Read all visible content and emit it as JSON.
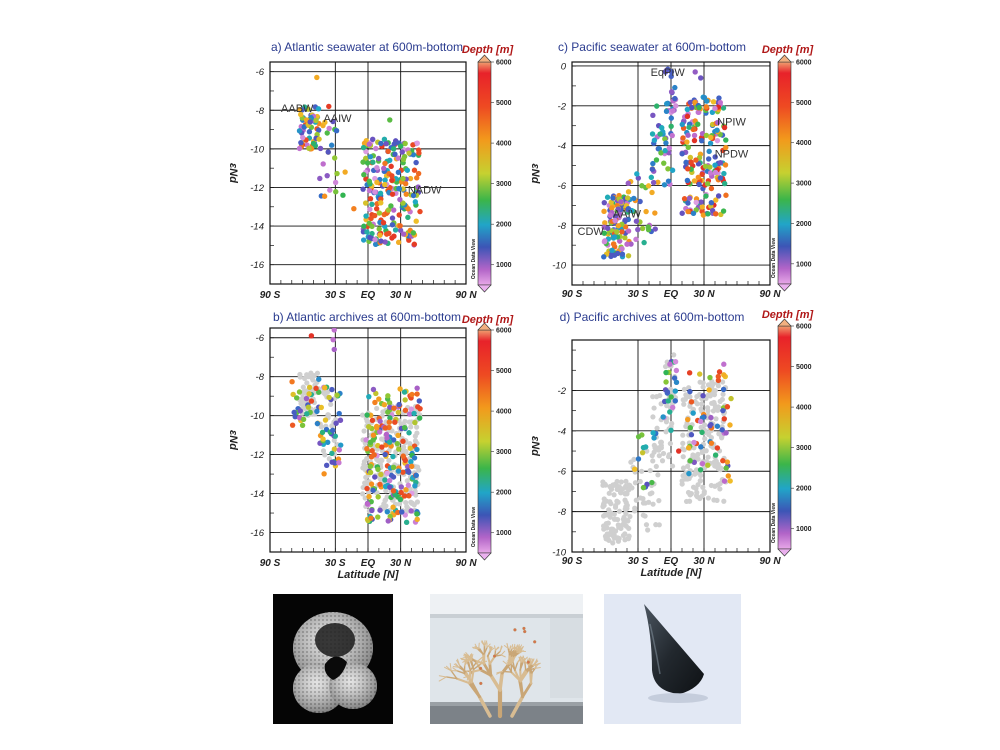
{
  "chart_data": [
    {
      "type": "scatter",
      "title": "a) Atlantic seawater at 600m-bottom",
      "ylabel": "εNd",
      "xlabel": "",
      "x_ticks": [
        "90 S",
        "30 S",
        "EQ",
        "30 N",
        "90 N"
      ],
      "xlim": [
        -90,
        90
      ],
      "ylim": [
        -17,
        -5.5
      ],
      "y_ticks": [
        -6,
        -8,
        -10,
        -12,
        -14,
        -16
      ],
      "grid": true,
      "colorbar": {
        "title": "Depth [m]",
        "ticks": [
          "6000",
          "5000",
          "4000",
          "3000",
          "2000",
          "1000"
        ],
        "range": [
          500,
          6000
        ],
        "credit": "Ocean Data View"
      },
      "annotations": [
        {
          "text": "AABW",
          "x": -65,
          "y": -8.1
        },
        {
          "text": "AAIW",
          "x": -28,
          "y": -8.6
        },
        {
          "text": "NADW",
          "x": 52,
          "y": -12.3
        }
      ],
      "clusters": [
        {
          "x": [
            -63,
            -45
          ],
          "y": [
            -10,
            -7.8
          ],
          "depth": [
            600,
            5200
          ],
          "n": 60
        },
        {
          "x": [
            -45,
            -28
          ],
          "y": [
            -12.5,
            -8.5
          ],
          "depth": [
            700,
            4500
          ],
          "n": 22
        },
        {
          "x": [
            -5,
            48
          ],
          "y": [
            -15,
            -9.5
          ],
          "depth": [
            500,
            5500
          ],
          "n": 230
        }
      ],
      "points": [
        {
          "x": -47,
          "y": -6.3,
          "depth": 4200
        },
        {
          "x": -36,
          "y": -7.8,
          "depth": 5400
        },
        {
          "x": -21,
          "y": -11.2,
          "depth": 4200
        },
        {
          "x": -13,
          "y": -13.1,
          "depth": 4600
        },
        {
          "x": -23,
          "y": -12.4,
          "depth": 3000
        },
        {
          "x": 20,
          "y": -8.5,
          "depth": 3200
        }
      ]
    },
    {
      "type": "scatter",
      "title": "c) Pacific seawater at 600m-bottom",
      "ylabel": "εNd",
      "xlabel": "",
      "x_ticks": [
        "90 S",
        "30 S",
        "EQ",
        "30 N",
        "90 N"
      ],
      "xlim": [
        -90,
        90
      ],
      "ylim": [
        -11,
        0.2
      ],
      "y_ticks": [
        0,
        -2,
        -4,
        -6,
        -8,
        -10
      ],
      "grid": true,
      "colorbar": {
        "title": "Depth [m]",
        "ticks": [
          "6000",
          "5000",
          "4000",
          "3000",
          "2000",
          "1000"
        ],
        "range": [
          500,
          6000
        ],
        "credit": "Ocean Data View"
      },
      "annotations": [
        {
          "text": "EqPIW",
          "x": -3,
          "y": -0.5
        },
        {
          "text": "NPIW",
          "x": 55,
          "y": -3.0
        },
        {
          "text": "NPDW",
          "x": 55,
          "y": -4.6
        },
        {
          "text": "AAIW",
          "x": -40,
          "y": -7.6
        },
        {
          "text": "CDW",
          "x": -73,
          "y": -8.5
        }
      ],
      "clusters": [
        {
          "x": [
            -62,
            -38
          ],
          "y": [
            -9.6,
            -6.5
          ],
          "depth": [
            600,
            5000
          ],
          "n": 110
        },
        {
          "x": [
            -40,
            -10
          ],
          "y": [
            -9,
            -5
          ],
          "depth": [
            700,
            4500
          ],
          "n": 35
        },
        {
          "x": [
            -18,
            2
          ],
          "y": [
            -6,
            -2
          ],
          "depth": [
            700,
            3500
          ],
          "n": 40
        },
        {
          "x": [
            -5,
            5
          ],
          "y": [
            -3,
            0
          ],
          "depth": [
            600,
            2500
          ],
          "n": 18
        },
        {
          "x": [
            10,
            50
          ],
          "y": [
            -7.5,
            -1.5
          ],
          "depth": [
            500,
            5800
          ],
          "n": 190
        }
      ],
      "points": [
        {
          "x": -5,
          "y": -0.3,
          "depth": 1500
        },
        {
          "x": 22,
          "y": -0.3,
          "depth": 1200
        },
        {
          "x": 27,
          "y": -0.6,
          "depth": 1400
        }
      ]
    },
    {
      "type": "scatter",
      "title": "b) Atlantic archives at 600m-bottom",
      "ylabel": "εNd",
      "xlabel": "Latitude [N]",
      "x_ticks": [
        "90 S",
        "30 S",
        "EQ",
        "30 N",
        "90 N"
      ],
      "xlim": [
        -90,
        90
      ],
      "ylim": [
        -17,
        -5.5
      ],
      "y_ticks": [
        -6,
        -8,
        -10,
        -12,
        -14,
        -16
      ],
      "grid": true,
      "colorbar": {
        "title": "Depth [m]",
        "ticks": [
          "6000",
          "5000",
          "4000",
          "3000",
          "2000",
          "1000"
        ],
        "range": [
          500,
          6000
        ],
        "credit": "Ocean Data View"
      },
      "seawater_reference_gray": true,
      "clusters": [
        {
          "x": [
            -70,
            -45
          ],
          "y": [
            -10.5,
            -8
          ],
          "depth": [
            1000,
            5200
          ],
          "n": 30
        },
        {
          "x": [
            -45,
            -25
          ],
          "y": [
            -13,
            -8.5
          ],
          "depth": [
            700,
            4500
          ],
          "n": 40
        },
        {
          "x": [
            -2,
            48
          ],
          "y": [
            -15.5,
            -8.5
          ],
          "depth": [
            500,
            5200
          ],
          "n": 200
        }
      ],
      "points": [
        {
          "x": -52,
          "y": -5.9,
          "depth": 5600
        },
        {
          "x": -31,
          "y": -5.6,
          "depth": 900
        },
        {
          "x": -32,
          "y": -6.1,
          "depth": 900
        },
        {
          "x": -31,
          "y": -6.6,
          "depth": 1100
        }
      ]
    },
    {
      "type": "scatter",
      "title": "d) Pacific archives at 600m-bottom",
      "ylabel": "εNd",
      "xlabel": "Latitude [N]",
      "x_ticks": [
        "90 S",
        "30 S",
        "EQ",
        "30 N",
        "90 N"
      ],
      "xlim": [
        -90,
        90
      ],
      "ylim": [
        -10,
        0.5
      ],
      "y_ticks": [
        -2,
        -4,
        -6,
        -8,
        -10
      ],
      "grid": true,
      "colorbar": {
        "title": "Depth [m]",
        "ticks": [
          "6000",
          "5000",
          "4000",
          "3000",
          "2000",
          "1000"
        ],
        "range": [
          500,
          6000
        ],
        "credit": "Ocean Data View"
      },
      "seawater_reference_gray": true,
      "clusters": [
        {
          "x": [
            -30,
            -8
          ],
          "y": [
            -7,
            -4
          ],
          "depth": [
            1500,
            4000
          ],
          "n": 12
        },
        {
          "x": [
            -8,
            5
          ],
          "y": [
            -4,
            -0.5
          ],
          "depth": [
            600,
            3500
          ],
          "n": 22
        },
        {
          "x": [
            15,
            55
          ],
          "y": [
            -6.5,
            -0.5
          ],
          "depth": [
            600,
            5500
          ],
          "n": 60
        }
      ],
      "points": [
        {
          "x": -33,
          "y": -5.9,
          "depth": 4000
        },
        {
          "x": -23,
          "y": -4.8,
          "depth": 2600
        },
        {
          "x": 7,
          "y": -5.0,
          "depth": 5600
        },
        {
          "x": -1,
          "y": -0.7,
          "depth": 900
        },
        {
          "x": 48,
          "y": -0.7,
          "depth": 900
        }
      ]
    }
  ],
  "photos": [
    {
      "name": "foraminifera-sem-photo"
    },
    {
      "name": "deep-sea-coral-photo"
    },
    {
      "name": "fish-tooth-photo"
    }
  ]
}
